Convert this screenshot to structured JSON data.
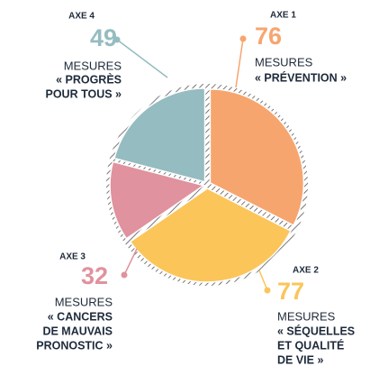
{
  "chart_data": {
    "type": "pie",
    "axis_labels": [
      "AXE 1",
      "AXE 2",
      "AXE 3",
      "AXE 4"
    ],
    "values": [
      76,
      77,
      32,
      49
    ],
    "value_captions": [
      "MESURES",
      "MESURES",
      "MESURES",
      "MESURES"
    ],
    "category_lines": [
      [
        "« PRÉVENTION »"
      ],
      [
        "« SÉQUELLES",
        "ET QUALITÉ",
        "DE VIE »"
      ],
      [
        "« CANCERS",
        "DE MAUVAIS",
        "PRONOSTIC »"
      ],
      [
        "« PROGRÈS",
        "POUR TOUS »"
      ]
    ],
    "colors": [
      "#f7a56e",
      "#fbc55a",
      "#e0929e",
      "#95bcc0"
    ]
  }
}
